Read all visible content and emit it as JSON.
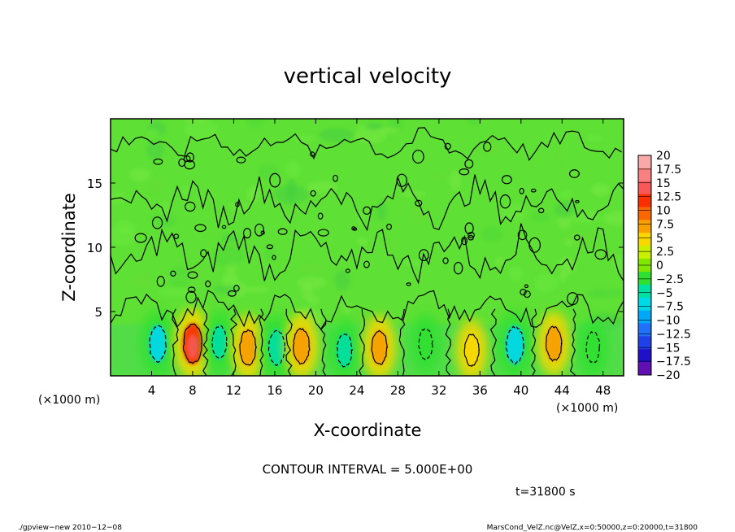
{
  "chart_data": {
    "type": "heatmap",
    "title": "vertical velocity",
    "xlabel": "X-coordinate",
    "ylabel": "Z-coordinate",
    "x_unit": "(×1000 m)",
    "xlim": [
      0,
      50
    ],
    "ylim": [
      0,
      20
    ],
    "x_ticks": [
      4,
      8,
      12,
      16,
      20,
      24,
      28,
      32,
      36,
      40,
      44,
      48
    ],
    "y_ticks": [
      5,
      10,
      15
    ],
    "x_tick_labels": [
      "4",
      "8",
      "12",
      "16",
      "20",
      "24",
      "28",
      "32",
      "36",
      "40",
      "44",
      "48"
    ],
    "y_tick_labels": [
      "5",
      "10",
      "15"
    ],
    "contour_interval_text": "CONTOUR INTERVAL = 5.000E+00",
    "time_label": "t=31800 s",
    "colorbar": {
      "levels": [
        20,
        17.5,
        15,
        12.5,
        10,
        7.5,
        5,
        2.5,
        0,
        -2.5,
        -5,
        -7.5,
        -10,
        -12.5,
        -15,
        -17.5,
        -20
      ],
      "labels": [
        "20",
        "17.5",
        "15",
        "12.5",
        "10",
        "7.5",
        "5",
        "2.5",
        "0",
        "−2.5",
        "−5",
        "−7.5",
        "−10",
        "−12.5",
        "−15",
        "−17.5",
        "−20"
      ],
      "colors": [
        "#f8a8a8",
        "#f88080",
        "#f85858",
        "#f83000",
        "#f86800",
        "#f8a000",
        "#f8d800",
        "#c8f000",
        "#80e800",
        "#30e030",
        "#00e0a0",
        "#00d8e8",
        "#00a8f8",
        "#2070f8",
        "#2040e8",
        "#2010c8",
        "#6010b0"
      ]
    },
    "cells": [
      {
        "x": 4.6,
        "z": 2.5,
        "w": -8
      },
      {
        "x": 8.0,
        "z": 2.5,
        "w": 11
      },
      {
        "x": 10.6,
        "z": 2.6,
        "w": -5
      },
      {
        "x": 13.4,
        "z": 2.2,
        "w": 7
      },
      {
        "x": 16.2,
        "z": 2.2,
        "w": -7
      },
      {
        "x": 18.6,
        "z": 2.3,
        "w": 7
      },
      {
        "x": 22.8,
        "z": 2.0,
        "w": -5
      },
      {
        "x": 26.2,
        "z": 2.2,
        "w": 6
      },
      {
        "x": 30.7,
        "z": 2.5,
        "w": -3
      },
      {
        "x": 35.2,
        "z": 2.0,
        "w": 4
      },
      {
        "x": 39.4,
        "z": 2.4,
        "w": -9
      },
      {
        "x": 43.2,
        "z": 2.5,
        "w": 6
      },
      {
        "x": 47.0,
        "z": 2.2,
        "w": -3
      }
    ]
  },
  "footer": {
    "left": "./gpview−new  2010−12−08",
    "right": "MarsCond_VelZ.nc@VelZ,x=0:50000,z=0:20000,t=31800"
  },
  "colors": {
    "background_field": "#58e030",
    "updraft": "#f8a000",
    "downdraft": "#00c8f0"
  }
}
